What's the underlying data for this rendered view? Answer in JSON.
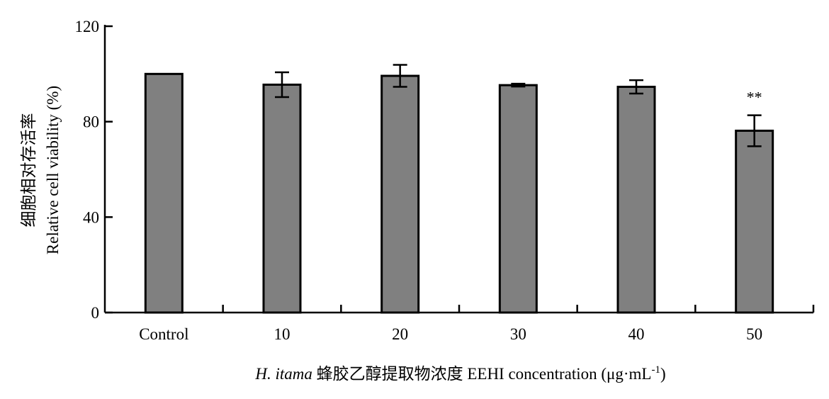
{
  "chart_data": {
    "type": "bar",
    "title": "",
    "categories": [
      "Control",
      "10",
      "20",
      "30",
      "40",
      "50"
    ],
    "values": [
      100,
      95.5,
      99.2,
      95.3,
      94.6,
      76.2
    ],
    "errors": [
      0,
      5.2,
      4.6,
      0.6,
      2.8,
      6.5
    ],
    "annotations": [
      "",
      "",
      "",
      "",
      "",
      "**"
    ],
    "ylabel_cn": "细胞相对存活率",
    "ylabel": "Relative cell viability (%)",
    "xlabel_italic": "H. itama",
    "xlabel_rest": "蜂胶乙醇提取物浓度 EEHI concentration (μg·mL",
    "xlabel_sup": "-1",
    "xlabel_close": ")",
    "ylim": [
      0,
      120
    ],
    "yticks": [
      0,
      40,
      80,
      120
    ],
    "bar_color": "#808080",
    "edge_color": "#000000",
    "grid": false,
    "legend": "none"
  }
}
